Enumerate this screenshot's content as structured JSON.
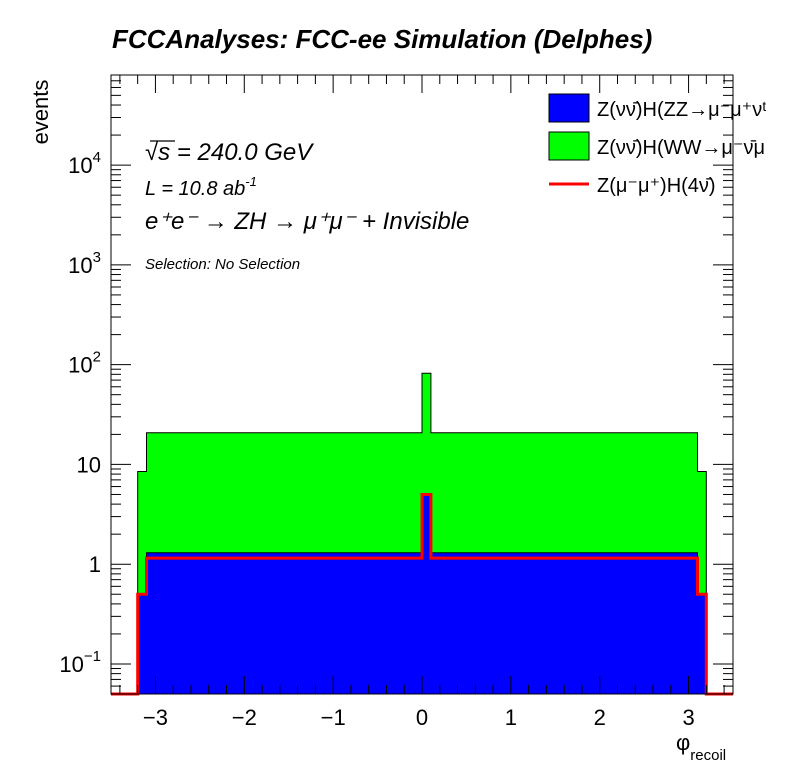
{
  "chart_data": {
    "type": "area",
    "title": "FCCAnalyses: FCC-ee Simulation (Delphes)",
    "xlabel": "φ",
    "xlabel_sub": "recoil",
    "ylabel": "events",
    "xlim": [
      -3.5,
      3.5
    ],
    "ylim": [
      0.05,
      80000
    ],
    "yscale": "log",
    "stacked": true,
    "grid": false,
    "legend_placement": "top-right",
    "x_ticks": [
      -3,
      -2,
      -1,
      0,
      1,
      2,
      3
    ],
    "x_tick_labels": [
      "−3",
      "−2",
      "−1",
      "0",
      "1",
      "2",
      "3"
    ],
    "y_ticks": [
      {
        "value": 0.1,
        "base": "10",
        "exp": "−1"
      },
      {
        "value": 1,
        "base": "1",
        "exp": ""
      },
      {
        "value": 10,
        "base": "10",
        "exp": ""
      },
      {
        "value": 100,
        "base": "10",
        "exp": "2"
      },
      {
        "value": 1000,
        "base": "10",
        "exp": "3"
      },
      {
        "value": 10000,
        "base": "10",
        "exp": "4"
      }
    ],
    "annotations": {
      "sqrt_s": "√s = 240.0 GeV",
      "lumi": "L = 10.8 ab",
      "lumi_exp": "-1",
      "process": "e⁺e⁻ → ZH → μ⁺μ⁻ + Invisible",
      "selection": "Selection: No Selection"
    },
    "bin_edges": [
      -3.5,
      -3.2,
      -3.1,
      -3.0,
      0.0,
      0.1,
      3.0,
      3.1,
      3.2,
      3.5
    ],
    "series": [
      {
        "name": "Z(νν̄)H(ZZ→μ⁻μ⁺ν",
        "legend_label": "Z(νν̄)H(ZZ→μ⁻μ⁺νᵗ",
        "style": "fill",
        "color": "#0000ff",
        "values": [
          0,
          0.5,
          1.3,
          1.3,
          5.0,
          1.3,
          1.3,
          0.5,
          0
        ]
      },
      {
        "name": "Z(νν̄)H(WW→μ⁻ν̄μ",
        "legend_label": "Z(νν̄)H(WW→μ⁻ν̄μ",
        "style": "fill",
        "color": "#00ff00",
        "values": [
          0,
          8,
          19.5,
          19.5,
          77,
          19.5,
          19.5,
          8,
          0
        ]
      },
      {
        "name": "Z(μ⁻μ⁺)H(4ν̄)",
        "legend_label": "Z(μ⁻μ⁺)H(4ν̄)",
        "style": "line",
        "color": "#ff0000",
        "values": [
          0,
          0.5,
          1.15,
          1.15,
          5.0,
          1.15,
          1.15,
          0.5,
          0
        ]
      }
    ]
  }
}
